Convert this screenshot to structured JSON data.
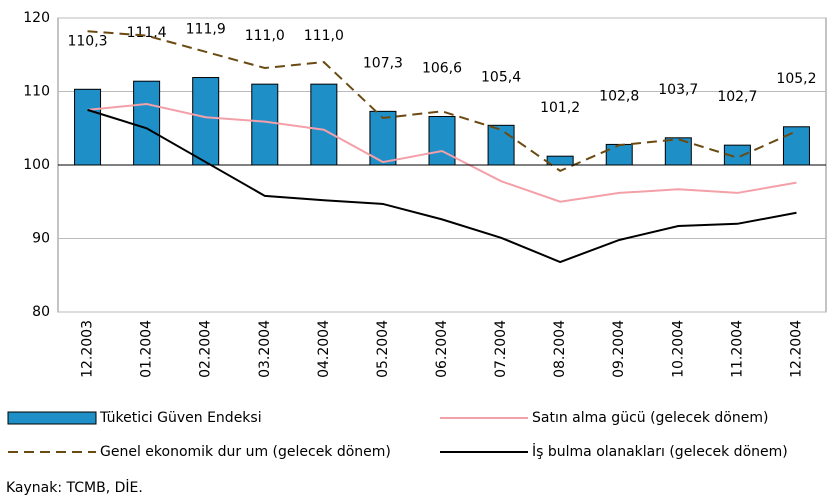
{
  "chart_data": {
    "type": "bar",
    "categories": [
      "12.2003",
      "01.2004",
      "02.2004",
      "03.2004",
      "04.2004",
      "05.2004",
      "06.2004",
      "07.2004",
      "08.2004",
      "09.2004",
      "10.2004",
      "11.2004",
      "12.2004"
    ],
    "ylim": [
      80,
      120
    ],
    "yticks": [
      80,
      90,
      100,
      110,
      120
    ],
    "x_axis_crossing": 100,
    "grid": true,
    "series": [
      {
        "name": "Tüketici Güven Endeksi",
        "type": "bar",
        "color": "#1f8fc8",
        "values": [
          110.3,
          111.4,
          111.9,
          111.0,
          111.0,
          107.3,
          106.6,
          105.4,
          101.2,
          102.8,
          103.7,
          102.7,
          105.2
        ],
        "value_labels": [
          "110,3",
          "111,4",
          "111,9",
          "111,0",
          "111,0",
          "107,3",
          "106,6",
          "105,4",
          "101,2",
          "102,8",
          "103,7",
          "102,7",
          "105,2"
        ]
      },
      {
        "name": "Satın alma gücü (gelecek dönem)",
        "type": "line",
        "color": "#f4a0a8",
        "dash": false,
        "values": [
          107.5,
          108.3,
          106.5,
          105.9,
          104.8,
          100.4,
          101.9,
          97.8,
          95.0,
          96.2,
          96.7,
          96.2,
          97.6
        ]
      },
      {
        "name": "Genel ekonomik dur um (gelecek dönem)",
        "type": "line",
        "color": "#6b4a12",
        "dash": true,
        "values": [
          118.2,
          117.6,
          115.4,
          113.2,
          114.0,
          106.4,
          107.3,
          104.8,
          99.2,
          102.7,
          103.5,
          101.0,
          104.6
        ]
      },
      {
        "name": "İş bulma olanakları (gelecek dönem)",
        "type": "line",
        "color": "#000000",
        "dash": false,
        "values": [
          107.5,
          105.0,
          100.4,
          95.8,
          95.2,
          94.7,
          92.6,
          90.1,
          86.8,
          89.8,
          91.7,
          92.0,
          93.5
        ]
      }
    ],
    "source": "Kaynak: TCMB, DİE."
  }
}
